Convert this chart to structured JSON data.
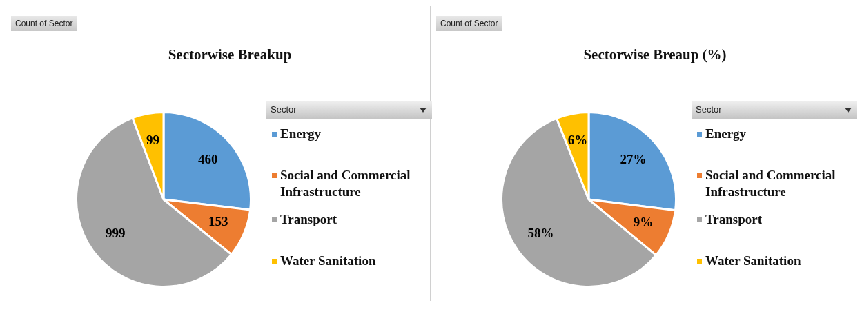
{
  "chart_data": [
    {
      "type": "pie",
      "title": "Sectorwise Breakup",
      "annotations": [
        "Count of Sector"
      ],
      "legend_title": "Sector",
      "legend": "right",
      "data_labels": true,
      "categories": [
        "Energy",
        "Social and Commercial Infrastructure",
        "Transport",
        "Water Sanitation"
      ],
      "values": [
        460,
        153,
        999,
        99
      ],
      "colors": [
        "#5b9bd5",
        "#ed7d31",
        "#a5a5a5",
        "#ffc000"
      ]
    },
    {
      "type": "pie",
      "title": "Sectorwise Breaup (%)",
      "annotations": [
        "Count of Sector"
      ],
      "legend_title": "Sector",
      "legend": "right",
      "categories": [
        "Energy",
        "Social and Commercial Infrastructure",
        "Transport",
        "Water Sanitation"
      ],
      "values": [
        27,
        9,
        58,
        6
      ],
      "value_labels": [
        "27%",
        "9%",
        "58%",
        "6%"
      ],
      "colors": [
        "#5b9bd5",
        "#ed7d31",
        "#a5a5a5",
        "#ffc000"
      ]
    }
  ]
}
